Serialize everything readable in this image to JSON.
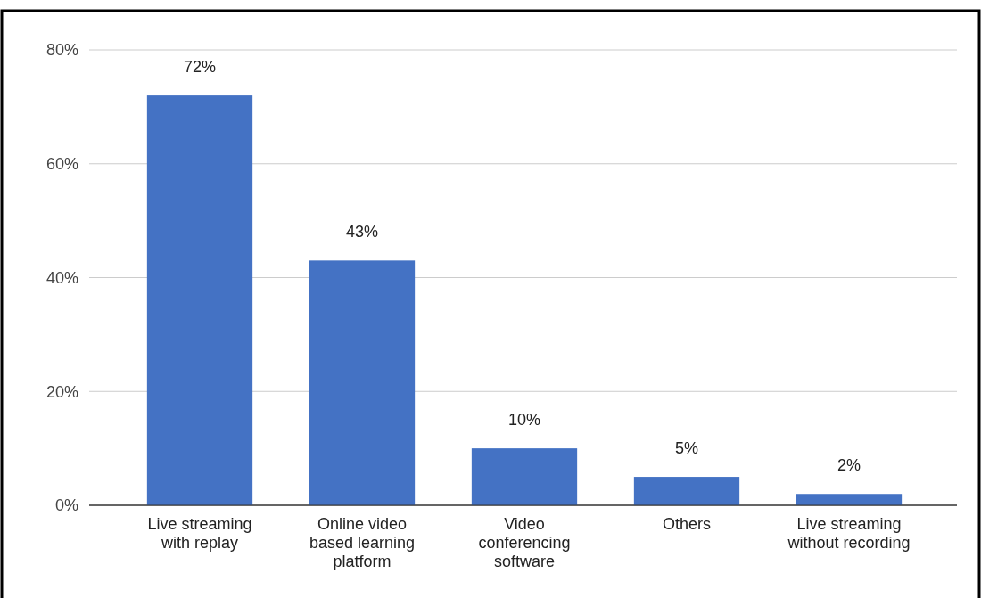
{
  "chart_data": {
    "type": "bar",
    "categories": [
      "Live streaming with replay",
      "Online video based learning platform",
      "Video conferencing software",
      "Others",
      "Live streaming without recording"
    ],
    "values": [
      72,
      43,
      10,
      5,
      2
    ],
    "value_labels": [
      "72%",
      "43%",
      "10%",
      "5%",
      "2%"
    ],
    "color": "#4472c4",
    "ylim": [
      0,
      80
    ],
    "yticks": [
      {
        "value": 0,
        "label": "0%"
      },
      {
        "value": 20,
        "label": "20%"
      },
      {
        "value": 40,
        "label": "40%"
      },
      {
        "value": 60,
        "label": "60%"
      },
      {
        "value": 80,
        "label": "80%"
      }
    ],
    "grid": "y"
  }
}
